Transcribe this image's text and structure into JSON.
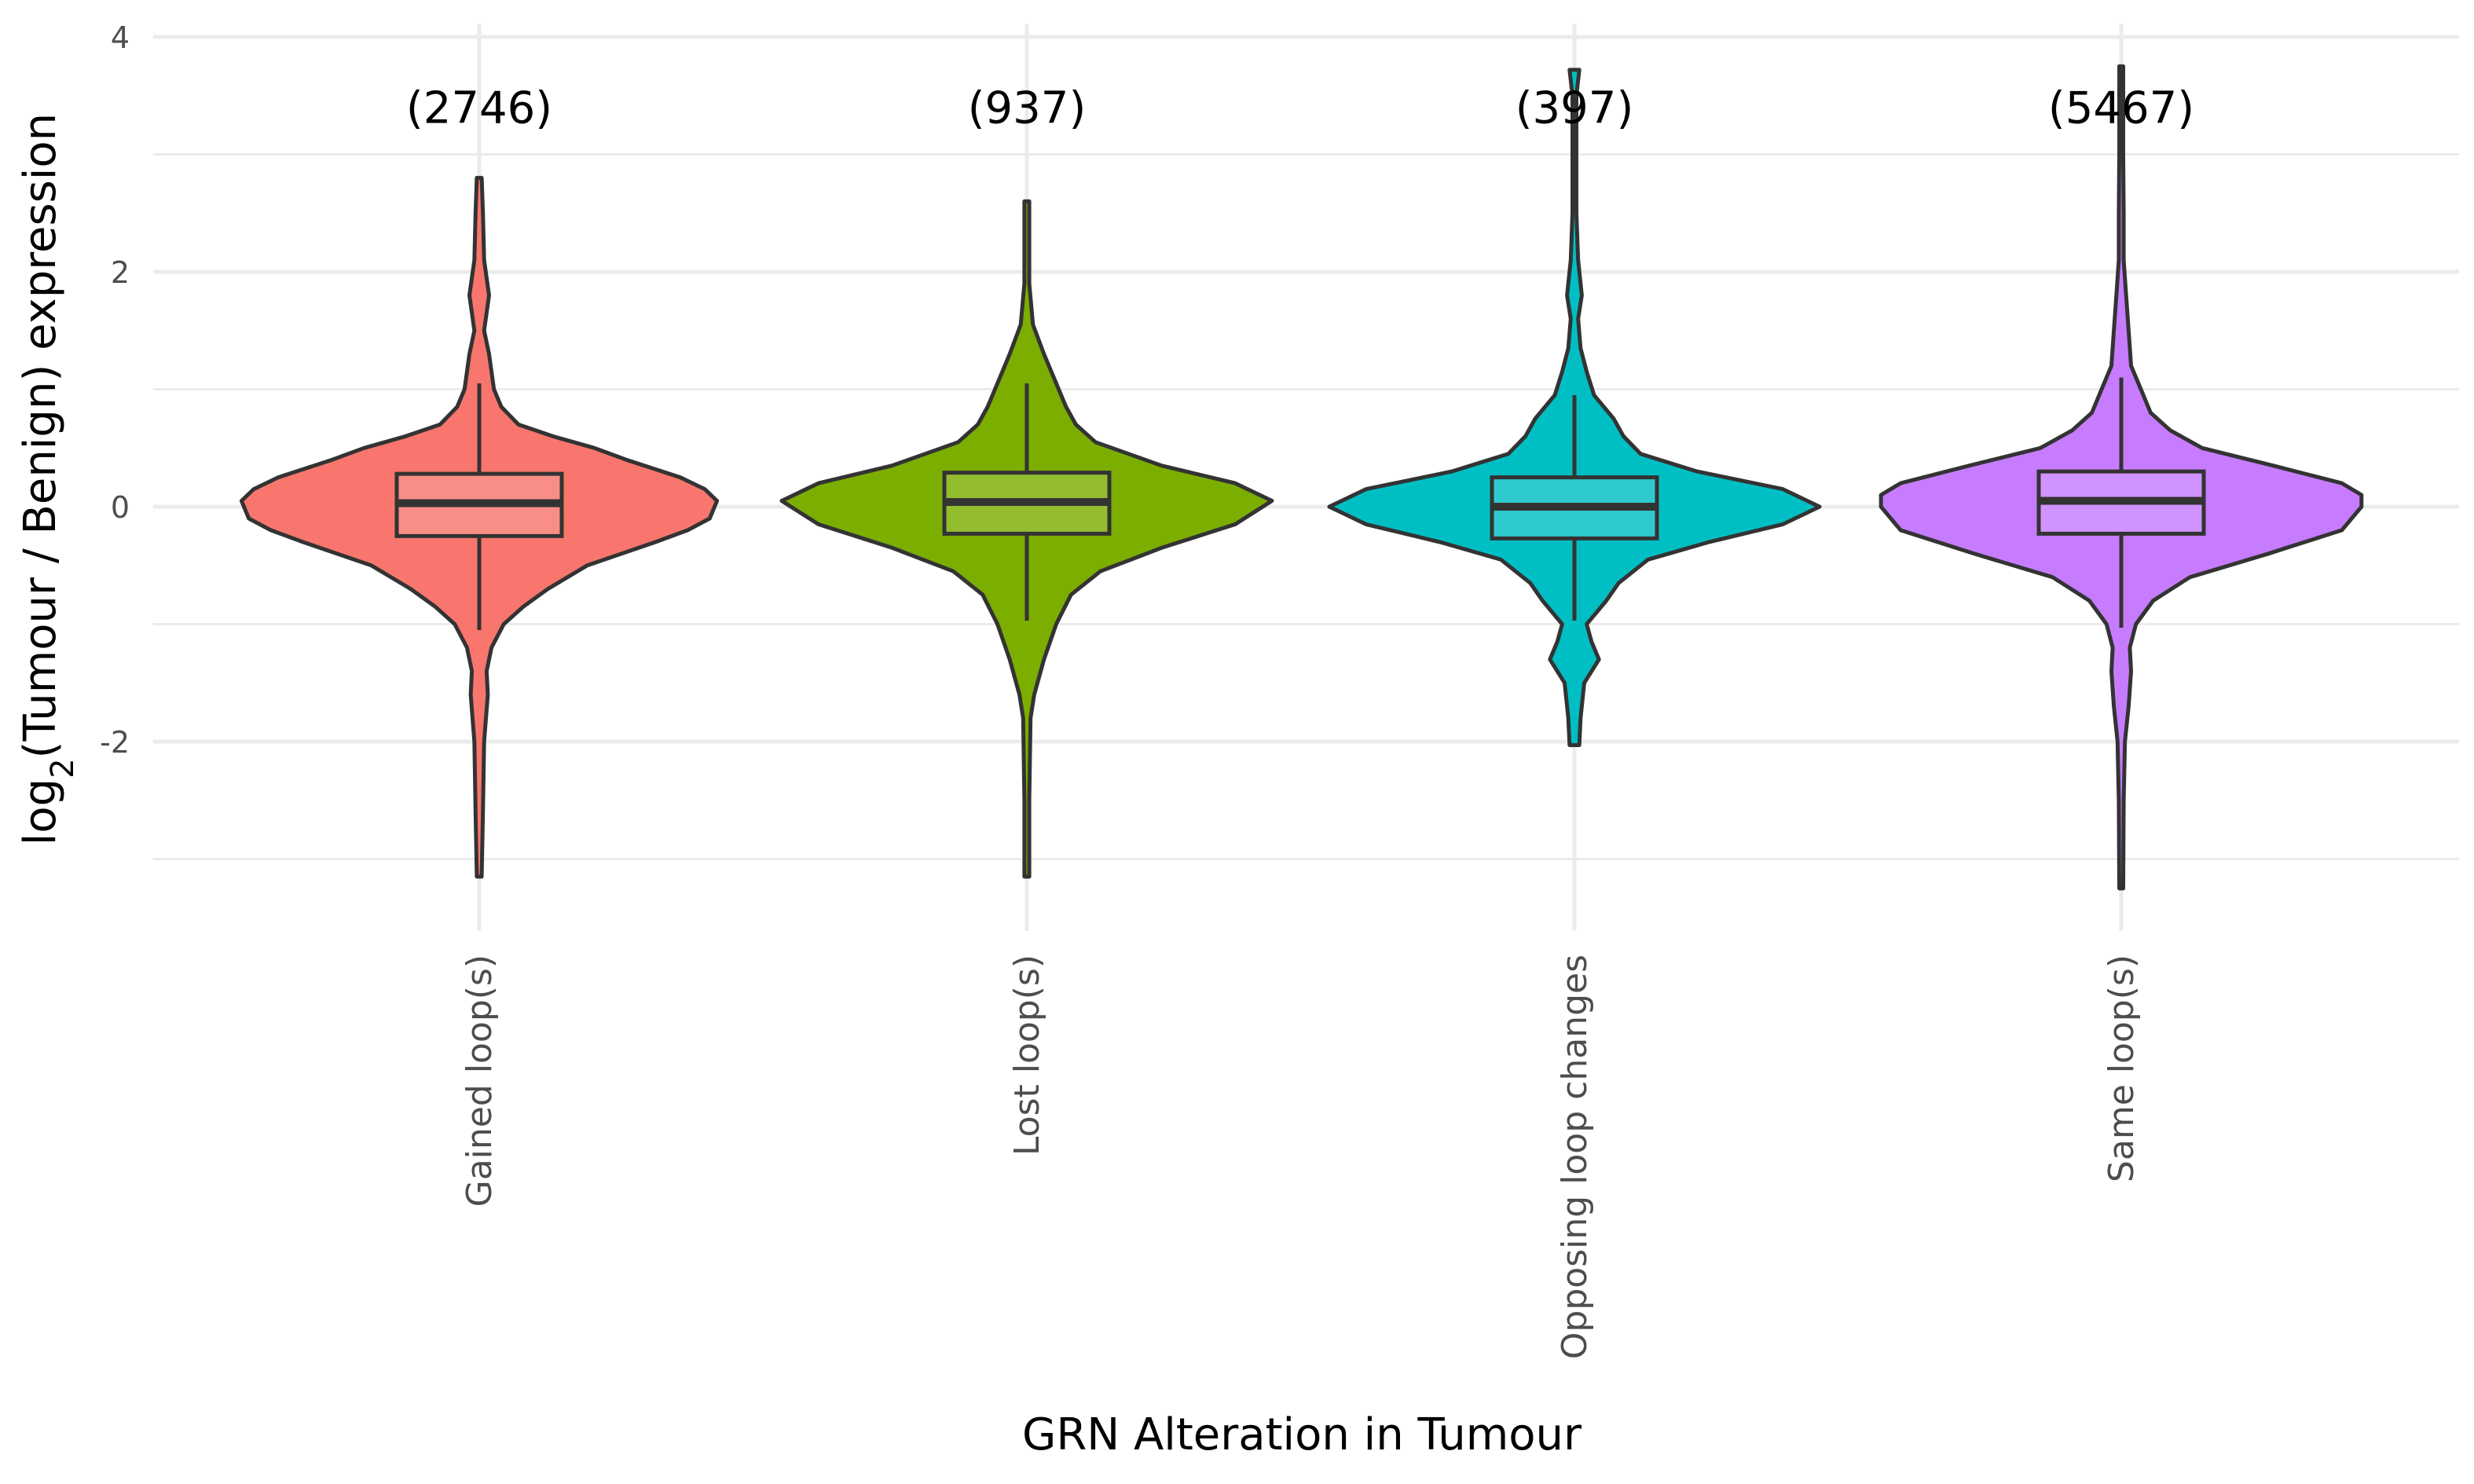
{
  "chart_data": {
    "type": "violin",
    "xlabel": "GRN Alteration in Tumour",
    "ylabel_main": "log",
    "ylabel_sub": "2",
    "ylabel_rest": "(Tumour / Benign) expression",
    "ylim": [
      -3.3,
      4.05
    ],
    "y_major_ticks": [
      4,
      2,
      0,
      -2
    ],
    "y_major_labels": [
      "4",
      "2",
      "0",
      "-2"
    ],
    "y_minor_ticks": [
      3,
      1,
      -1,
      -3
    ],
    "grid": true,
    "legend": "none",
    "categories": [
      "Gained loop(s)",
      "Lost loop(s)",
      "Opposing loop changes",
      "Same loop(s)"
    ],
    "counts": [
      "(2746)",
      "(937)",
      "(397)",
      "(5467)"
    ],
    "count_label_y": 3.4,
    "colors": [
      "#F8766D",
      "#7CAE00",
      "#00BFC4",
      "#C77CFF"
    ],
    "series": [
      {
        "min": -3.15,
        "max": 2.8,
        "box": {
          "q1": -0.25,
          "median": 0.03,
          "q3": 0.28,
          "whisker_low": -1.05,
          "whisker_high": 1.05
        },
        "profile": [
          [
            -3.15,
            0.01
          ],
          [
            -2.6,
            0.015
          ],
          [
            -2.0,
            0.02
          ],
          [
            -1.6,
            0.035
          ],
          [
            -1.4,
            0.03
          ],
          [
            -1.2,
            0.05
          ],
          [
            -1.0,
            0.1
          ],
          [
            -0.85,
            0.18
          ],
          [
            -0.7,
            0.28
          ],
          [
            -0.5,
            0.44
          ],
          [
            -0.3,
            0.72
          ],
          [
            -0.2,
            0.85
          ],
          [
            -0.1,
            0.94
          ],
          [
            0.05,
            0.97
          ],
          [
            0.15,
            0.92
          ],
          [
            0.25,
            0.82
          ],
          [
            0.4,
            0.6
          ],
          [
            0.5,
            0.47
          ],
          [
            0.6,
            0.3
          ],
          [
            0.7,
            0.16
          ],
          [
            0.85,
            0.09
          ],
          [
            1.0,
            0.06
          ],
          [
            1.3,
            0.04
          ],
          [
            1.5,
            0.02
          ],
          [
            1.8,
            0.04
          ],
          [
            2.1,
            0.02
          ],
          [
            2.5,
            0.015
          ],
          [
            2.8,
            0.01
          ]
        ]
      },
      {
        "min": -3.15,
        "max": 2.65,
        "box": {
          "q1": -0.23,
          "median": 0.04,
          "q3": 0.29,
          "whisker_low": -0.97,
          "whisker_high": 1.05
        },
        "profile": [
          [
            -3.15,
            0.01
          ],
          [
            -2.5,
            0.01
          ],
          [
            -1.8,
            0.015
          ],
          [
            -1.6,
            0.03
          ],
          [
            -1.3,
            0.07
          ],
          [
            -1.0,
            0.12
          ],
          [
            -0.75,
            0.18
          ],
          [
            -0.55,
            0.3
          ],
          [
            -0.35,
            0.55
          ],
          [
            -0.15,
            0.85
          ],
          [
            0.05,
            1.0
          ],
          [
            0.2,
            0.85
          ],
          [
            0.35,
            0.55
          ],
          [
            0.55,
            0.28
          ],
          [
            0.7,
            0.2
          ],
          [
            0.85,
            0.16
          ],
          [
            1.05,
            0.12
          ],
          [
            1.3,
            0.07
          ],
          [
            1.55,
            0.025
          ],
          [
            1.9,
            0.01
          ],
          [
            2.6,
            0.01
          ]
        ]
      },
      {
        "min": -2.03,
        "max": 3.72,
        "box": {
          "q1": -0.27,
          "median": 0.0,
          "q3": 0.25,
          "whisker_low": -0.97,
          "whisker_high": 0.95
        },
        "profile": [
          [
            -2.03,
            0.02
          ],
          [
            -1.8,
            0.025
          ],
          [
            -1.5,
            0.04
          ],
          [
            -1.3,
            0.1
          ],
          [
            -1.15,
            0.07
          ],
          [
            -1.0,
            0.05
          ],
          [
            -0.8,
            0.13
          ],
          [
            -0.65,
            0.18
          ],
          [
            -0.45,
            0.3
          ],
          [
            -0.3,
            0.55
          ],
          [
            -0.15,
            0.85
          ],
          [
            0.0,
            1.0
          ],
          [
            0.15,
            0.85
          ],
          [
            0.3,
            0.5
          ],
          [
            0.45,
            0.27
          ],
          [
            0.6,
            0.2
          ],
          [
            0.75,
            0.16
          ],
          [
            0.95,
            0.08
          ],
          [
            1.15,
            0.05
          ],
          [
            1.35,
            0.025
          ],
          [
            1.6,
            0.015
          ],
          [
            1.8,
            0.03
          ],
          [
            2.1,
            0.015
          ],
          [
            2.5,
            0.008
          ],
          [
            3.5,
            0.008
          ],
          [
            3.72,
            0.02
          ]
        ]
      },
      {
        "min": -3.25,
        "max": 3.75,
        "box": {
          "q1": -0.23,
          "median": 0.05,
          "q3": 0.3,
          "whisker_low": -1.03,
          "whisker_high": 1.1
        },
        "profile": [
          [
            -3.25,
            0.008
          ],
          [
            -2.5,
            0.01
          ],
          [
            -2.0,
            0.015
          ],
          [
            -1.7,
            0.03
          ],
          [
            -1.4,
            0.04
          ],
          [
            -1.2,
            0.035
          ],
          [
            -1.0,
            0.06
          ],
          [
            -0.8,
            0.13
          ],
          [
            -0.6,
            0.28
          ],
          [
            -0.4,
            0.6
          ],
          [
            -0.2,
            0.9
          ],
          [
            0.0,
            0.98
          ],
          [
            0.1,
            0.98
          ],
          [
            0.2,
            0.9
          ],
          [
            0.35,
            0.62
          ],
          [
            0.5,
            0.33
          ],
          [
            0.65,
            0.2
          ],
          [
            0.8,
            0.12
          ],
          [
            1.0,
            0.08
          ],
          [
            1.2,
            0.04
          ],
          [
            1.5,
            0.03
          ],
          [
            1.8,
            0.02
          ],
          [
            2.1,
            0.01
          ],
          [
            2.5,
            0.01
          ],
          [
            3.0,
            0.008
          ],
          [
            3.75,
            0.008
          ]
        ]
      }
    ]
  }
}
